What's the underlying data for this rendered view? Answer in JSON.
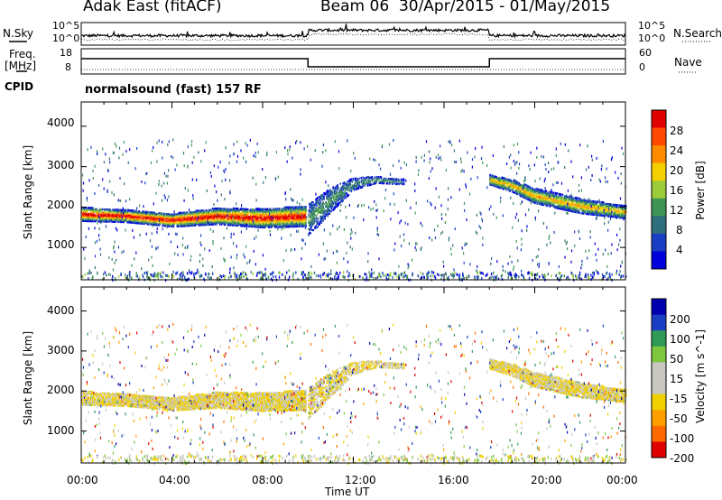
{
  "header": {
    "station": "Adak East (fitACF)",
    "beam_date": "Beam 06  30/Apr/2015 - 01/May/2015"
  },
  "top_panels": {
    "nsky_label": "N.Sky",
    "nsearch_label": "N.Search",
    "freq_label": "Freq.",
    "freq_unit": "[MHz]",
    "nave_label": "Nave",
    "cpid_label": "CPID",
    "cpid_text": "normalsound (fast) 157 RF",
    "noise_ticks_left": [
      "10^5",
      "10^0"
    ],
    "noise_ticks_right": [
      "10^5",
      "10^0"
    ],
    "freq_ticks": [
      "18",
      "8"
    ],
    "nave_ticks": [
      "60",
      "0"
    ]
  },
  "colors": {
    "axis": "#000000",
    "power_scale": [
      "#0000dd",
      "#1a3fc4",
      "#2f6e7c",
      "#3f9455",
      "#9ccc3a",
      "#f5d000",
      "#ff8c00",
      "#ff4800",
      "#e00000"
    ],
    "velocity_scale": [
      "#e00000",
      "#ff6a00",
      "#ffa000",
      "#f0d000",
      "#c8c8c0",
      "#c8c8c0",
      "#7ec840",
      "#2f9a55",
      "#1a3fc4",
      "#0000b0"
    ]
  },
  "chart_data": [
    {
      "type": "heatmap",
      "title": "Power",
      "colorbar_label": "Power [dB]",
      "colorbar_ticks": [
        "28",
        "24",
        "20",
        "16",
        "12",
        "8",
        "4"
      ],
      "ylabel": "Slant Range [km]",
      "yticks": [
        "4000",
        "3000",
        "2000",
        "1000"
      ],
      "ylim": [
        200,
        4600
      ],
      "xlim": [
        0,
        24
      ],
      "features": [
        {
          "name": "main_band",
          "x": [
            0,
            2,
            4,
            6,
            8,
            9.9
          ],
          "y_center": [
            1850,
            1800,
            1700,
            1800,
            1750,
            1800
          ],
          "y_half": [
            170,
            150,
            160,
            200,
            230,
            250
          ],
          "peak_power_db": 24
        },
        {
          "name": "after_jump",
          "x": [
            10,
            11,
            12,
            13,
            14
          ],
          "y_center": [
            1700,
            2200,
            2600,
            2700,
            2650
          ],
          "y_half": [
            400,
            300,
            150,
            80,
            60
          ],
          "peak_power_db": 8
        },
        {
          "name": "evening_band",
          "x": [
            18,
            19,
            20,
            22,
            24
          ],
          "y_center": [
            2700,
            2550,
            2300,
            2050,
            1900
          ],
          "y_half": [
            120,
            150,
            180,
            180,
            150
          ],
          "peak_power_db": 16
        }
      ]
    },
    {
      "type": "heatmap",
      "title": "Velocity",
      "colorbar_label": "Velocity [m s^-1]",
      "colorbar_ticks": [
        "200",
        "100",
        "50",
        "15",
        "-15",
        "-50",
        "-100",
        "-200"
      ],
      "ylabel": "Slant Range [km]",
      "yticks": [
        "4000",
        "3000",
        "2000",
        "1000"
      ],
      "ylim": [
        200,
        4600
      ],
      "xlim": [
        0,
        24
      ],
      "xlabel": "Time UT",
      "xticks": [
        "00:00",
        "04:00",
        "08:00",
        "12:00",
        "16:00",
        "20:00",
        "00:00"
      ]
    }
  ]
}
